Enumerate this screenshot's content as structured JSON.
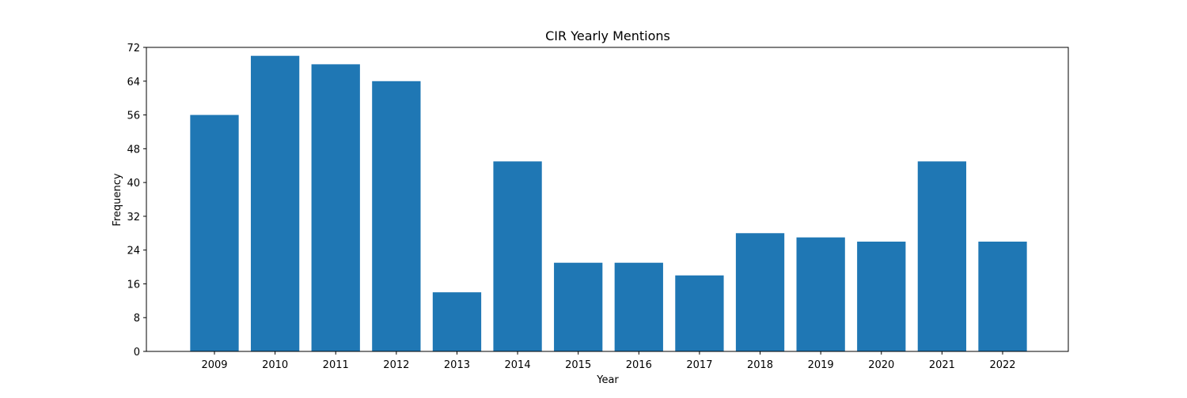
{
  "chart_data": {
    "type": "bar",
    "title": "CIR Yearly Mentions",
    "xlabel": "Year",
    "ylabel": "Frequency",
    "categories": [
      "2009",
      "2010",
      "2011",
      "2012",
      "2013",
      "2014",
      "2015",
      "2016",
      "2017",
      "2018",
      "2019",
      "2020",
      "2021",
      "2022"
    ],
    "values": [
      56,
      70,
      68,
      64,
      14,
      45,
      21,
      21,
      18,
      28,
      27,
      26,
      45,
      26
    ],
    "ylim": [
      0,
      72
    ],
    "yticks": [
      0,
      8,
      16,
      24,
      32,
      40,
      48,
      56,
      64,
      72
    ],
    "grid": false,
    "bar_color": "#1f77b4"
  }
}
